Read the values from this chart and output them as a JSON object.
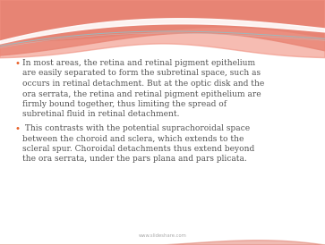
{
  "background_color": "#ffffff",
  "bullet_color": "#E8612A",
  "text_color": "#505050",
  "footer_color": "#aaaaaa",
  "footer_text": "www.slideshare.com",
  "bullet1_lines": [
    "In most areas, the retina and retinal pigment epithelium",
    "are easily separated to form the subretinal space, such as",
    "occurs in retinal detachment. But at the optic disk and the",
    "ora serrata, the retina and retinal pigment epithelium are",
    "firmly bound together, thus limiting the spread of",
    "subretinal fluid in retinal detachment."
  ],
  "bullet2_lines": [
    " This contrasts with the potential suprachoroidal space",
    "between the choroid and sclera, which extends to the",
    "scleral spur. Choroidal detachments thus extend beyond",
    "the ora serrata, under the pars plana and pars plicata."
  ],
  "wave_dark": "#d4604a",
  "wave_mid": "#e8907a",
  "wave_light": "#f0b0a0",
  "wave_highlight": "#ffffff",
  "teal_line": "#90c8c8",
  "figsize": [
    3.63,
    2.74
  ],
  "dpi": 100
}
